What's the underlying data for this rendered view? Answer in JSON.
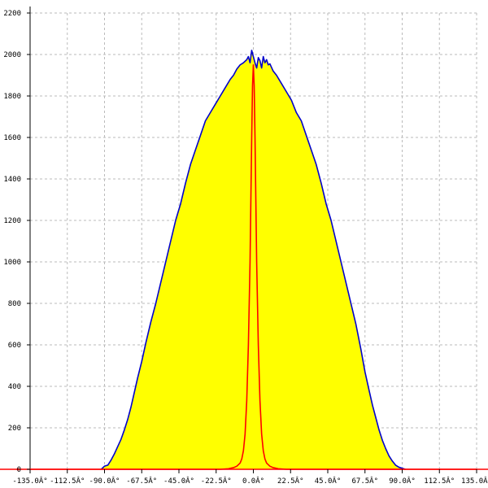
{
  "chart_data": {
    "type": "area",
    "x_ticks": [
      {
        "value": -135.0,
        "label": "-135.0Â°"
      },
      {
        "value": -112.5,
        "label": "-112.5Â°"
      },
      {
        "value": -90.0,
        "label": "-90.0Â°"
      },
      {
        "value": -67.5,
        "label": "-67.5Â°"
      },
      {
        "value": -45.0,
        "label": "-45.0Â°"
      },
      {
        "value": -22.5,
        "label": "-22.5Â°"
      },
      {
        "value": 0.0,
        "label": "0.0Â°"
      },
      {
        "value": 22.5,
        "label": "22.5Â°"
      },
      {
        "value": 45.0,
        "label": "45.0Â°"
      },
      {
        "value": 67.5,
        "label": "67.5Â°"
      },
      {
        "value": 90.0,
        "label": "90.0Â°"
      },
      {
        "value": 112.5,
        "label": "112.5Â°"
      },
      {
        "value": 135.0,
        "label": "135.0Â°"
      }
    ],
    "y_ticks": [
      {
        "value": 0,
        "label": "0"
      },
      {
        "value": 200,
        "label": "200"
      },
      {
        "value": 400,
        "label": "400"
      },
      {
        "value": 600,
        "label": "600"
      },
      {
        "value": 800,
        "label": "800"
      },
      {
        "value": 1000,
        "label": "1000"
      },
      {
        "value": 1200,
        "label": "1200"
      },
      {
        "value": 1400,
        "label": "1400"
      },
      {
        "value": 1600,
        "label": "1600"
      },
      {
        "value": 1800,
        "label": "1800"
      },
      {
        "value": 2000,
        "label": "2000"
      },
      {
        "value": 2200,
        "label": "2200"
      }
    ],
    "xlim": [
      -135,
      135
    ],
    "ylim": [
      0,
      2200
    ],
    "grid": true,
    "series": [
      {
        "color": "#0000cc",
        "fill": "#ffff00",
        "x": [
          -92,
          -90,
          -88,
          -86,
          -84,
          -82,
          -80,
          -78,
          -76,
          -74,
          -72,
          -70,
          -67.5,
          -65,
          -62,
          -59,
          -56,
          -53,
          -50,
          -47,
          -44,
          -41,
          -38,
          -35,
          -32,
          -29,
          -26,
          -23,
          -20,
          -17,
          -14,
          -12,
          -10,
          -8,
          -6,
          -4,
          -3,
          -2,
          -1,
          0,
          1,
          2,
          3,
          4,
          5,
          6,
          7,
          8,
          9,
          10,
          12,
          14,
          17,
          20,
          23,
          26,
          29,
          32,
          35,
          38,
          41,
          44,
          47,
          50,
          53,
          56,
          59,
          62,
          65,
          67.5,
          70,
          72,
          74,
          76,
          78,
          80,
          82,
          84,
          86,
          88,
          90,
          92
        ],
        "y": [
          0,
          15,
          20,
          45,
          75,
          110,
          145,
          190,
          240,
          300,
          370,
          440,
          520,
          610,
          710,
          800,
          900,
          1000,
          1100,
          1200,
          1280,
          1380,
          1470,
          1540,
          1610,
          1680,
          1720,
          1760,
          1800,
          1840,
          1880,
          1900,
          1930,
          1950,
          1960,
          1975,
          1990,
          1960,
          2020,
          1990,
          1960,
          1935,
          1985,
          1970,
          1935,
          1990,
          1960,
          1975,
          1950,
          1955,
          1920,
          1900,
          1860,
          1820,
          1780,
          1720,
          1680,
          1610,
          1540,
          1470,
          1380,
          1280,
          1200,
          1100,
          1000,
          900,
          800,
          700,
          580,
          470,
          380,
          310,
          250,
          190,
          140,
          100,
          65,
          40,
          20,
          10,
          5,
          0
        ]
      },
      {
        "color": "#ff0000",
        "x": [
          -135,
          -20,
          -15,
          -12,
          -10,
          -8,
          -7,
          -6,
          -5,
          -4,
          -3,
          -2,
          -1.5,
          -1,
          -0.5,
          0,
          0.5,
          1,
          1.5,
          2,
          3,
          4,
          5,
          6,
          7,
          8,
          10,
          12,
          15,
          20,
          135
        ],
        "y": [
          0,
          0,
          3,
          8,
          15,
          30,
          50,
          90,
          170,
          330,
          600,
          1000,
          1300,
          1600,
          1850,
          1950,
          1850,
          1600,
          1300,
          1000,
          600,
          330,
          170,
          90,
          50,
          30,
          15,
          8,
          3,
          0,
          0
        ]
      }
    ]
  }
}
